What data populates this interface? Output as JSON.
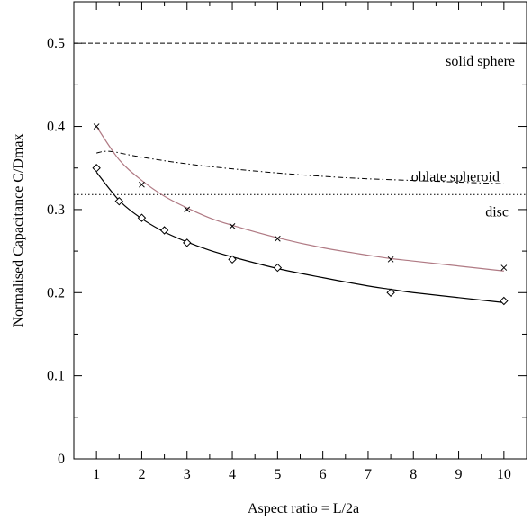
{
  "chart_data": {
    "type": "line",
    "xlabel": "Aspect ratio = L/2a",
    "ylabel": "Normalised Capacitance  C/Dmax",
    "xlim": [
      0.5,
      10.5
    ],
    "ylim": [
      0,
      0.55
    ],
    "x_ticks": [
      1,
      2,
      3,
      4,
      5,
      6,
      7,
      8,
      9,
      10
    ],
    "y_ticks": [
      0,
      0.1,
      0.2,
      0.3,
      0.4,
      0.5
    ],
    "x_tick_labels": [
      "1",
      "2",
      "3",
      "4",
      "5",
      "6",
      "7",
      "8",
      "9",
      "10"
    ],
    "y_tick_labels": [
      "0",
      "0.1",
      "0.2",
      "0.3",
      "0.4",
      "0.5"
    ],
    "grid": false,
    "reference_lines": [
      {
        "label": "solid sphere",
        "y": 0.5,
        "style": "dashed"
      },
      {
        "label": "disc",
        "y": 0.318,
        "style": "dotted"
      }
    ],
    "series": [
      {
        "label": "oblate spheroid",
        "style": "dashdot",
        "x": [
          1,
          1.3,
          2,
          3,
          4,
          5,
          6,
          7,
          8,
          9,
          10
        ],
        "y": [
          0.368,
          0.37,
          0.363,
          0.355,
          0.349,
          0.344,
          0.34,
          0.337,
          0.335,
          0.333,
          0.331
        ]
      },
      {
        "marker": "x",
        "color": "#b07a84",
        "points_x": [
          1,
          2,
          3,
          4,
          5,
          7.5,
          10
        ],
        "points_y": [
          0.4,
          0.33,
          0.3,
          0.28,
          0.265,
          0.24,
          0.23
        ],
        "fit_x": [
          1,
          1.5,
          2,
          2.5,
          3,
          3.5,
          4,
          5,
          6,
          7,
          7.5,
          8,
          9,
          10
        ],
        "fit_y": [
          0.4,
          0.36,
          0.335,
          0.316,
          0.302,
          0.29,
          0.281,
          0.266,
          0.254,
          0.245,
          0.241,
          0.238,
          0.232,
          0.226
        ]
      },
      {
        "marker": "diamond",
        "color": "#000000",
        "points_x": [
          1,
          1.5,
          2,
          2.5,
          3,
          4,
          5,
          7.5,
          10
        ],
        "points_y": [
          0.35,
          0.31,
          0.29,
          0.275,
          0.26,
          0.24,
          0.23,
          0.2,
          0.19
        ],
        "fit_x": [
          1,
          1.5,
          2,
          2.5,
          3,
          3.5,
          4,
          5,
          6,
          7,
          7.5,
          8,
          9,
          10
        ],
        "fit_y": [
          0.345,
          0.311,
          0.289,
          0.273,
          0.261,
          0.251,
          0.243,
          0.229,
          0.218,
          0.208,
          0.204,
          0.2,
          0.194,
          0.188
        ]
      }
    ]
  }
}
